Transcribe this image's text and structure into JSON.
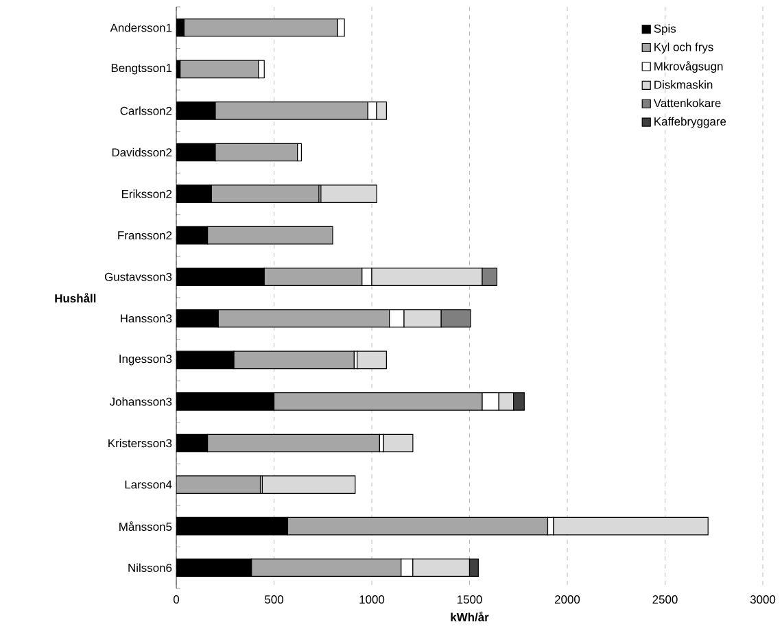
{
  "chart_data": {
    "type": "bar",
    "orientation": "horizontal",
    "stacked": true,
    "xlabel": "kWh/år",
    "ylabel": "Hushåll",
    "categories": [
      "Andersson1",
      "Bengtsson1",
      "Carlsson2",
      "Davidsson2",
      "Eriksson2",
      "Fransson2",
      "Gustavsson3",
      "Hansson3",
      "Ingesson3",
      "Johansson3",
      "Kristersson3",
      "Larsson4",
      "Månsson5",
      "Nilsson6"
    ],
    "series": [
      {
        "name": "Spis",
        "color": "#000000",
        "values": [
          40,
          20,
          200,
          200,
          180,
          160,
          450,
          215,
          295,
          500,
          160,
          null,
          570,
          385
        ]
      },
      {
        "name": "Kyl och frys",
        "color": "#a6a6a6",
        "values": [
          785,
          400,
          780,
          420,
          550,
          640,
          500,
          875,
          615,
          1065,
          880,
          430,
          1330,
          765
        ]
      },
      {
        "name": "Mkrovågsugn",
        "color": "#ffffff",
        "values": [
          35,
          30,
          45,
          20,
          10,
          null,
          50,
          75,
          15,
          85,
          20,
          10,
          30,
          60
        ]
      },
      {
        "name": "Diskmaskin",
        "color": "#d9d9d9",
        "values": [
          null,
          null,
          50,
          null,
          285,
          null,
          565,
          190,
          150,
          75,
          150,
          475,
          790,
          290
        ]
      },
      {
        "name": "Vattenkokare",
        "color": "#7f7f7f",
        "values": [
          null,
          null,
          null,
          null,
          null,
          null,
          75,
          150,
          null,
          null,
          null,
          null,
          null,
          null
        ]
      },
      {
        "name": "Kaffebryggare",
        "color": "#404040",
        "values": [
          null,
          null,
          null,
          null,
          null,
          null,
          null,
          null,
          null,
          55,
          null,
          null,
          null,
          45
        ]
      }
    ],
    "xlim": [
      0,
      3000
    ],
    "xticks": [
      0,
      500,
      1000,
      1500,
      2000,
      2500,
      3000
    ],
    "grid": "x",
    "legend": "top right"
  }
}
